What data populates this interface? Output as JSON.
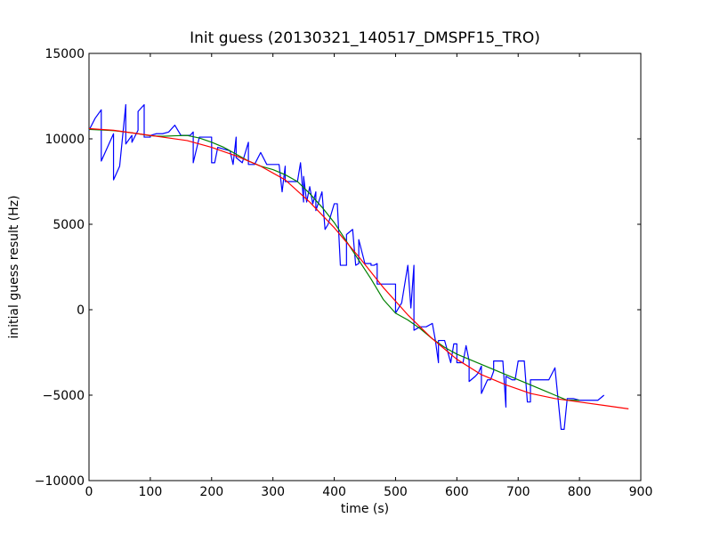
{
  "chart_data": {
    "type": "line",
    "title": "Init guess (20130321_140517_DMSPF15_TRO)",
    "xlabel": "time (s)",
    "ylabel": "initial guess result (Hz)",
    "xlim": [
      0,
      900
    ],
    "ylim": [
      -10000,
      15000
    ],
    "x_ticks": [
      0,
      100,
      200,
      300,
      400,
      500,
      600,
      700,
      800,
      900
    ],
    "y_ticks": [
      -10000,
      -5000,
      0,
      5000,
      10000,
      15000
    ],
    "grid": false,
    "legend": "none",
    "series": [
      {
        "color": "#0000ff",
        "x": [
          0,
          10,
          20,
          20,
          30,
          40,
          40,
          50,
          60,
          60,
          70,
          70,
          80,
          80,
          90,
          90,
          100,
          100,
          110,
          120,
          130,
          140,
          150,
          160,
          165,
          170,
          170,
          180,
          190,
          200,
          200,
          205,
          210,
          220,
          230,
          235,
          240,
          240,
          250,
          260,
          260,
          270,
          280,
          290,
          300,
          310,
          315,
          320,
          320,
          330,
          340,
          345,
          350,
          350,
          355,
          360,
          365,
          370,
          370,
          380,
          385,
          390,
          390,
          400,
          405,
          410,
          420,
          420,
          430,
          435,
          440,
          440,
          450,
          455,
          460,
          460,
          465,
          470,
          470,
          480,
          490,
          500,
          500,
          510,
          520,
          525,
          530,
          530,
          540,
          550,
          560,
          565,
          570,
          570,
          580,
          590,
          595,
          600,
          600,
          610,
          615,
          620,
          620,
          630,
          635,
          640,
          640,
          650,
          655,
          660,
          660,
          670,
          675,
          680,
          680,
          690,
          695,
          700,
          700,
          710,
          715,
          720,
          720,
          730,
          740,
          750,
          760,
          770,
          775,
          780,
          780,
          790,
          800,
          810,
          820,
          830,
          840
        ],
        "y": [
          10500,
          11200,
          11700,
          8700,
          9500,
          10300,
          7600,
          8400,
          12000,
          9700,
          10200,
          9800,
          10500,
          11600,
          12000,
          10100,
          10100,
          10200,
          10300,
          10300,
          10400,
          10800,
          10200,
          10200,
          10200,
          10400,
          8600,
          10100,
          10100,
          10100,
          8600,
          8600,
          9500,
          9400,
          9300,
          8500,
          10100,
          8900,
          8600,
          9800,
          8500,
          8500,
          9200,
          8500,
          8500,
          8500,
          6900,
          8400,
          7500,
          7500,
          7500,
          8600,
          6300,
          7800,
          6300,
          7200,
          6200,
          6900,
          5800,
          6900,
          4700,
          5000,
          5000,
          6200,
          6200,
          2600,
          2600,
          4400,
          4700,
          2600,
          2700,
          4100,
          2700,
          2700,
          2700,
          2600,
          2600,
          2700,
          1500,
          1500,
          1500,
          1500,
          -200,
          400,
          2600,
          100,
          2600,
          -1200,
          -1000,
          -1000,
          -800,
          -1800,
          -3100,
          -1800,
          -1800,
          -3100,
          -2000,
          -2000,
          -3100,
          -3100,
          -2100,
          -3000,
          -4200,
          -3900,
          -3700,
          -3300,
          -4900,
          -4100,
          -4100,
          -3600,
          -3000,
          -3000,
          -3000,
          -5700,
          -3900,
          -4100,
          -4100,
          -3000,
          -3000,
          -3000,
          -5400,
          -5400,
          -4100,
          -4100,
          -4100,
          -4100,
          -3400,
          -7000,
          -7000,
          -5200,
          -5200,
          -5200,
          -5300,
          -5300,
          -5300,
          -5300,
          -5000
        ]
      },
      {
        "color": "#008000",
        "x": [
          0,
          20,
          40,
          60,
          80,
          100,
          120,
          140,
          160,
          180,
          200,
          220,
          240,
          260,
          280,
          300,
          320,
          340,
          360,
          380,
          400,
          420,
          440,
          460,
          480,
          500,
          520,
          540,
          560,
          580,
          600,
          620,
          640,
          660,
          680,
          700,
          720,
          740,
          760,
          780,
          800
        ],
        "y": [
          10550,
          10520,
          10480,
          10400,
          10300,
          10180,
          10150,
          10180,
          10200,
          10050,
          9800,
          9500,
          9100,
          8700,
          8400,
          8200,
          7900,
          7500,
          6800,
          6000,
          5100,
          4000,
          2900,
          1800,
          600,
          -200,
          -600,
          -1100,
          -1700,
          -2200,
          -2600,
          -2900,
          -3200,
          -3500,
          -3800,
          -4100,
          -4400,
          -4700,
          -5000,
          -5300,
          -5300
        ]
      },
      {
        "color": "#ff0000",
        "x": [
          0,
          40,
          80,
          120,
          160,
          200,
          240,
          280,
          320,
          360,
          400,
          440,
          480,
          520,
          560,
          600,
          640,
          680,
          720,
          760,
          800,
          840,
          880
        ],
        "y": [
          10600,
          10500,
          10300,
          10100,
          9900,
          9500,
          9000,
          8400,
          7600,
          6300,
          4800,
          3100,
          1300,
          -300,
          -1700,
          -2900,
          -3800,
          -4400,
          -4900,
          -5200,
          -5400,
          -5600,
          -5800
        ]
      }
    ]
  }
}
